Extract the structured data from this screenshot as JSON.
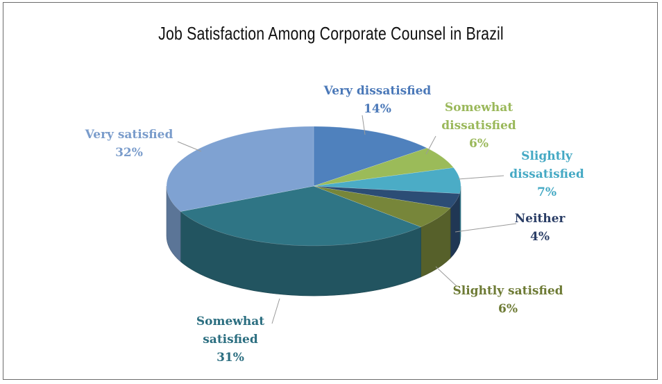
{
  "chart_data": {
    "type": "pie",
    "title": "Job Satisfaction Among Corporate Counsel in Brazil",
    "slices": [
      {
        "label": "Very dissatisfied",
        "value": 14,
        "value_label": "14%",
        "color": "#4f81bd",
        "label_color": "#4a78b8",
        "label_lines": [
          "Very dissatisfied",
          "14%"
        ]
      },
      {
        "label": "Somewhat dissatisfied",
        "value": 6,
        "value_label": "6%",
        "color": "#9bbb59",
        "label_color": "#9ab85a",
        "label_lines": [
          "Somewhat",
          "dissatisfied",
          "6%"
        ]
      },
      {
        "label": "Slightly dissatisfied",
        "value": 7,
        "value_label": "7%",
        "color": "#4bacc6",
        "label_color": "#45a9c4",
        "label_lines": [
          "Slightly",
          "dissatisfied",
          "7%"
        ]
      },
      {
        "label": "Neither",
        "value": 4,
        "value_label": "4%",
        "color": "#2c4d75",
        "label_color": "#2b3e66",
        "label_lines": [
          "Neither",
          "4%"
        ]
      },
      {
        "label": "Slightly satisfied",
        "value": 6,
        "value_label": "6%",
        "color": "#77863a",
        "label_color": "#6d7a34",
        "label_lines": [
          "Slightly satisfied",
          "6%"
        ]
      },
      {
        "label": "Somewhat satisfied",
        "value": 31,
        "value_label": "31%",
        "color": "#2f7585",
        "label_color": "#2b6e80",
        "label_lines": [
          "Somewhat",
          "satisfied",
          "31%"
        ]
      },
      {
        "label": "Very satisfied",
        "value": 32,
        "value_label": "32%",
        "color": "#7fa2d2",
        "label_color": "#7a9ccb",
        "label_lines": [
          "Very satisfied",
          "32%"
        ]
      }
    ],
    "legend": "none",
    "style": "3d-pie"
  }
}
